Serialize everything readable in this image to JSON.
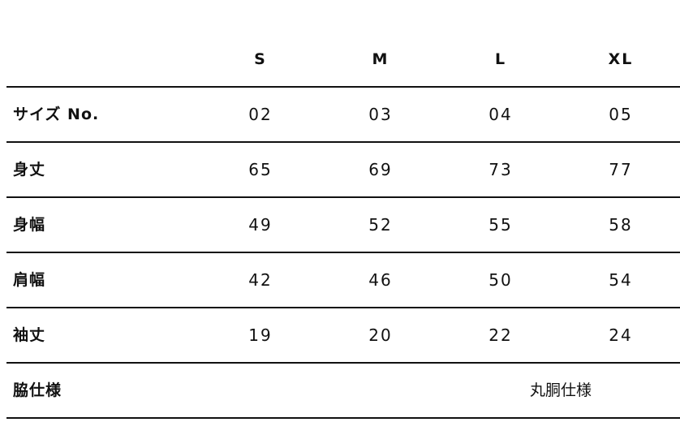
{
  "columns": [
    "S",
    "M",
    "L",
    "XL"
  ],
  "rows": [
    {
      "label": "サイズ No.",
      "values": [
        "02",
        "03",
        "04",
        "05"
      ]
    },
    {
      "label": "身丈",
      "values": [
        "65",
        "69",
        "73",
        "77"
      ]
    },
    {
      "label": "身幅",
      "values": [
        "49",
        "52",
        "55",
        "58"
      ]
    },
    {
      "label": "肩幅",
      "values": [
        "42",
        "46",
        "50",
        "54"
      ]
    },
    {
      "label": "袖丈",
      "values": [
        "19",
        "20",
        "22",
        "24"
      ]
    }
  ],
  "side_spec": {
    "label": "脇仕様",
    "value": "丸胴仕様"
  }
}
